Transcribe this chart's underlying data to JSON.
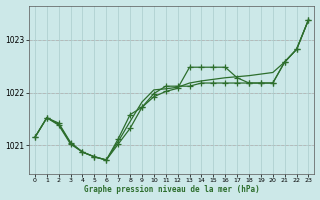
{
  "title": "Graphe pression niveau de la mer (hPa)",
  "bg_color": "#cce8e8",
  "grid_color": "#aacccc",
  "line_color": "#2d6e2d",
  "red_line_color": "#cc8888",
  "xlim": [
    -0.5,
    23.5
  ],
  "ylim": [
    1020.45,
    1023.65
  ],
  "yticks": [
    1021,
    1022,
    1023
  ],
  "xticks": [
    0,
    1,
    2,
    3,
    4,
    5,
    6,
    7,
    8,
    9,
    10,
    11,
    12,
    13,
    14,
    15,
    16,
    17,
    18,
    19,
    20,
    21,
    22,
    23
  ],
  "s1": [
    1021.15,
    1021.52,
    1021.42,
    1021.05,
    1020.87,
    1020.78,
    1020.72,
    1021.12,
    1021.58,
    1021.72,
    1021.92,
    1022.02,
    1022.08,
    1022.48,
    1022.48,
    1022.48,
    1022.48,
    1022.28,
    1022.18,
    1022.18,
    1022.18,
    1022.58,
    1022.82,
    1023.38
  ],
  "s2": [
    1021.15,
    1021.52,
    1021.38,
    1021.02,
    1020.87,
    1020.78,
    1020.72,
    1021.02,
    1021.32,
    1021.72,
    1021.98,
    1022.12,
    1022.12,
    1022.12,
    1022.18,
    1022.18,
    1022.18,
    1022.18,
    1022.18,
    1022.18,
    1022.18,
    1022.58,
    1022.82,
    1023.38
  ],
  "s3": [
    1021.15,
    1021.52,
    1021.4,
    1021.04,
    1020.87,
    1020.78,
    1020.72,
    1021.07,
    1021.45,
    1021.82,
    1022.05,
    1022.07,
    1022.1,
    1022.18,
    1022.22,
    1022.25,
    1022.28,
    1022.3,
    1022.32,
    1022.35,
    1022.38,
    1022.58,
    1022.82,
    1023.38
  ]
}
